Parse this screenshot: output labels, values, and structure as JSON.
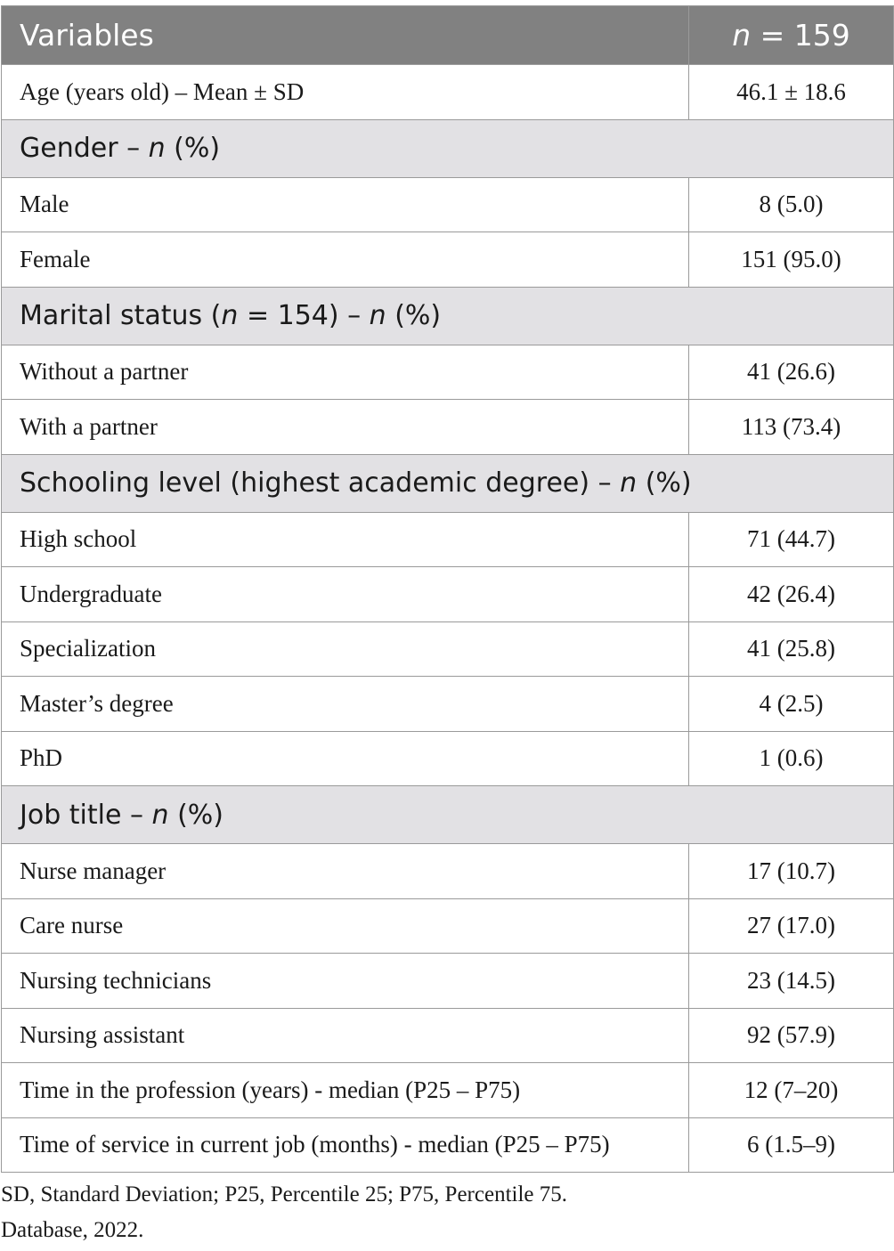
{
  "header": {
    "variables": "Variables",
    "n_prefix": "n",
    "n_suffix": " = 159"
  },
  "rows": {
    "age": {
      "label": "Age (years old) – Mean ± SD",
      "value": "46.1 ± 18.6"
    }
  },
  "sections": {
    "gender": {
      "title_pre": "Gender – ",
      "title_n": "n",
      "title_post": " (%)",
      "items": [
        {
          "label": "Male",
          "value": "8 (5.0)"
        },
        {
          "label": "Female",
          "value": "151 (95.0)"
        }
      ]
    },
    "marital": {
      "title_pre": "Marital status (",
      "title_n1": "n",
      "title_mid": " = 154) – ",
      "title_n2": "n",
      "title_post": " (%)",
      "items": [
        {
          "label": "Without a partner",
          "value": "41 (26.6)"
        },
        {
          "label": "With a partner",
          "value": "113 (73.4)"
        }
      ]
    },
    "schooling": {
      "title_pre": "Schooling level (highest academic degree) – ",
      "title_n": "n",
      "title_post": " (%)",
      "items": [
        {
          "label": "High school",
          "value": "71 (44.7)"
        },
        {
          "label": "Undergraduate",
          "value": "42 (26.4)"
        },
        {
          "label": "Specialization",
          "value": "41 (25.8)"
        },
        {
          "label": "Master’s degree",
          "value": "4 (2.5)"
        },
        {
          "label": "PhD",
          "value": "1 (0.6)"
        }
      ]
    },
    "job": {
      "title_pre": "Job title – ",
      "title_n": "n",
      "title_post": " (%)",
      "items": [
        {
          "label": "Nurse manager",
          "value": "17 (10.7)"
        },
        {
          "label": "Care nurse",
          "value": "27 (17.0)"
        },
        {
          "label": "Nursing technicians",
          "value": "23 (14.5)"
        },
        {
          "label": "Nursing assistant",
          "value": "92 (57.9)"
        },
        {
          "label": "Time in the profession (years) - median (P25 – P75)",
          "value": "12 (7–20)"
        },
        {
          "label": "Time of service in current job (months) - median (P25 – P75)",
          "value": "6 (1.5–9)"
        }
      ]
    }
  },
  "footnotes": {
    "abbrev": "SD, Standard Deviation; P25, Percentile 25; P75, Percentile 75.",
    "source": "Database, 2022."
  }
}
